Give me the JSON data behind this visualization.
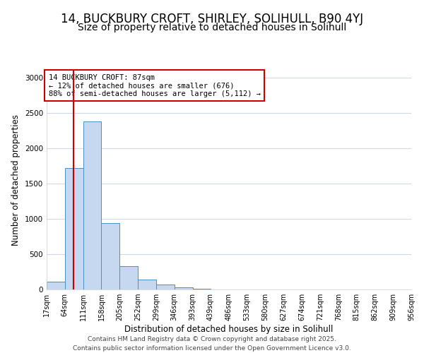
{
  "title": "14, BUCKBURY CROFT, SHIRLEY, SOLIHULL, B90 4YJ",
  "subtitle": "Size of property relative to detached houses in Solihull",
  "xlabel": "Distribution of detached houses by size in Solihull",
  "ylabel": "Number of detached properties",
  "bin_edges": [
    17,
    64,
    111,
    158,
    205,
    252,
    299,
    346,
    393,
    439,
    486,
    533,
    580,
    627,
    674,
    721,
    768,
    815,
    862,
    909,
    956
  ],
  "bin_counts": [
    110,
    1720,
    2380,
    940,
    330,
    145,
    75,
    35,
    10,
    0,
    0,
    0,
    0,
    0,
    0,
    0,
    0,
    0,
    0,
    0
  ],
  "bar_color": "#c5d8f0",
  "bar_edge_color": "#4a90c4",
  "red_line_x": 87,
  "annotation_title": "14 BUCKBURY CROFT: 87sqm",
  "annotation_line1": "← 12% of detached houses are smaller (676)",
  "annotation_line2": "88% of semi-detached houses are larger (5,112) →",
  "annotation_box_color": "#ffffff",
  "annotation_box_edge_color": "#cc0000",
  "ylim": [
    0,
    3100
  ],
  "yticks": [
    0,
    500,
    1000,
    1500,
    2000,
    2500,
    3000
  ],
  "footer_line1": "Contains HM Land Registry data © Crown copyright and database right 2025.",
  "footer_line2": "Contains public sector information licensed under the Open Government Licence v3.0.",
  "title_fontsize": 12,
  "subtitle_fontsize": 10,
  "label_fontsize": 8.5,
  "tick_fontsize": 7.5,
  "footer_fontsize": 6.5
}
